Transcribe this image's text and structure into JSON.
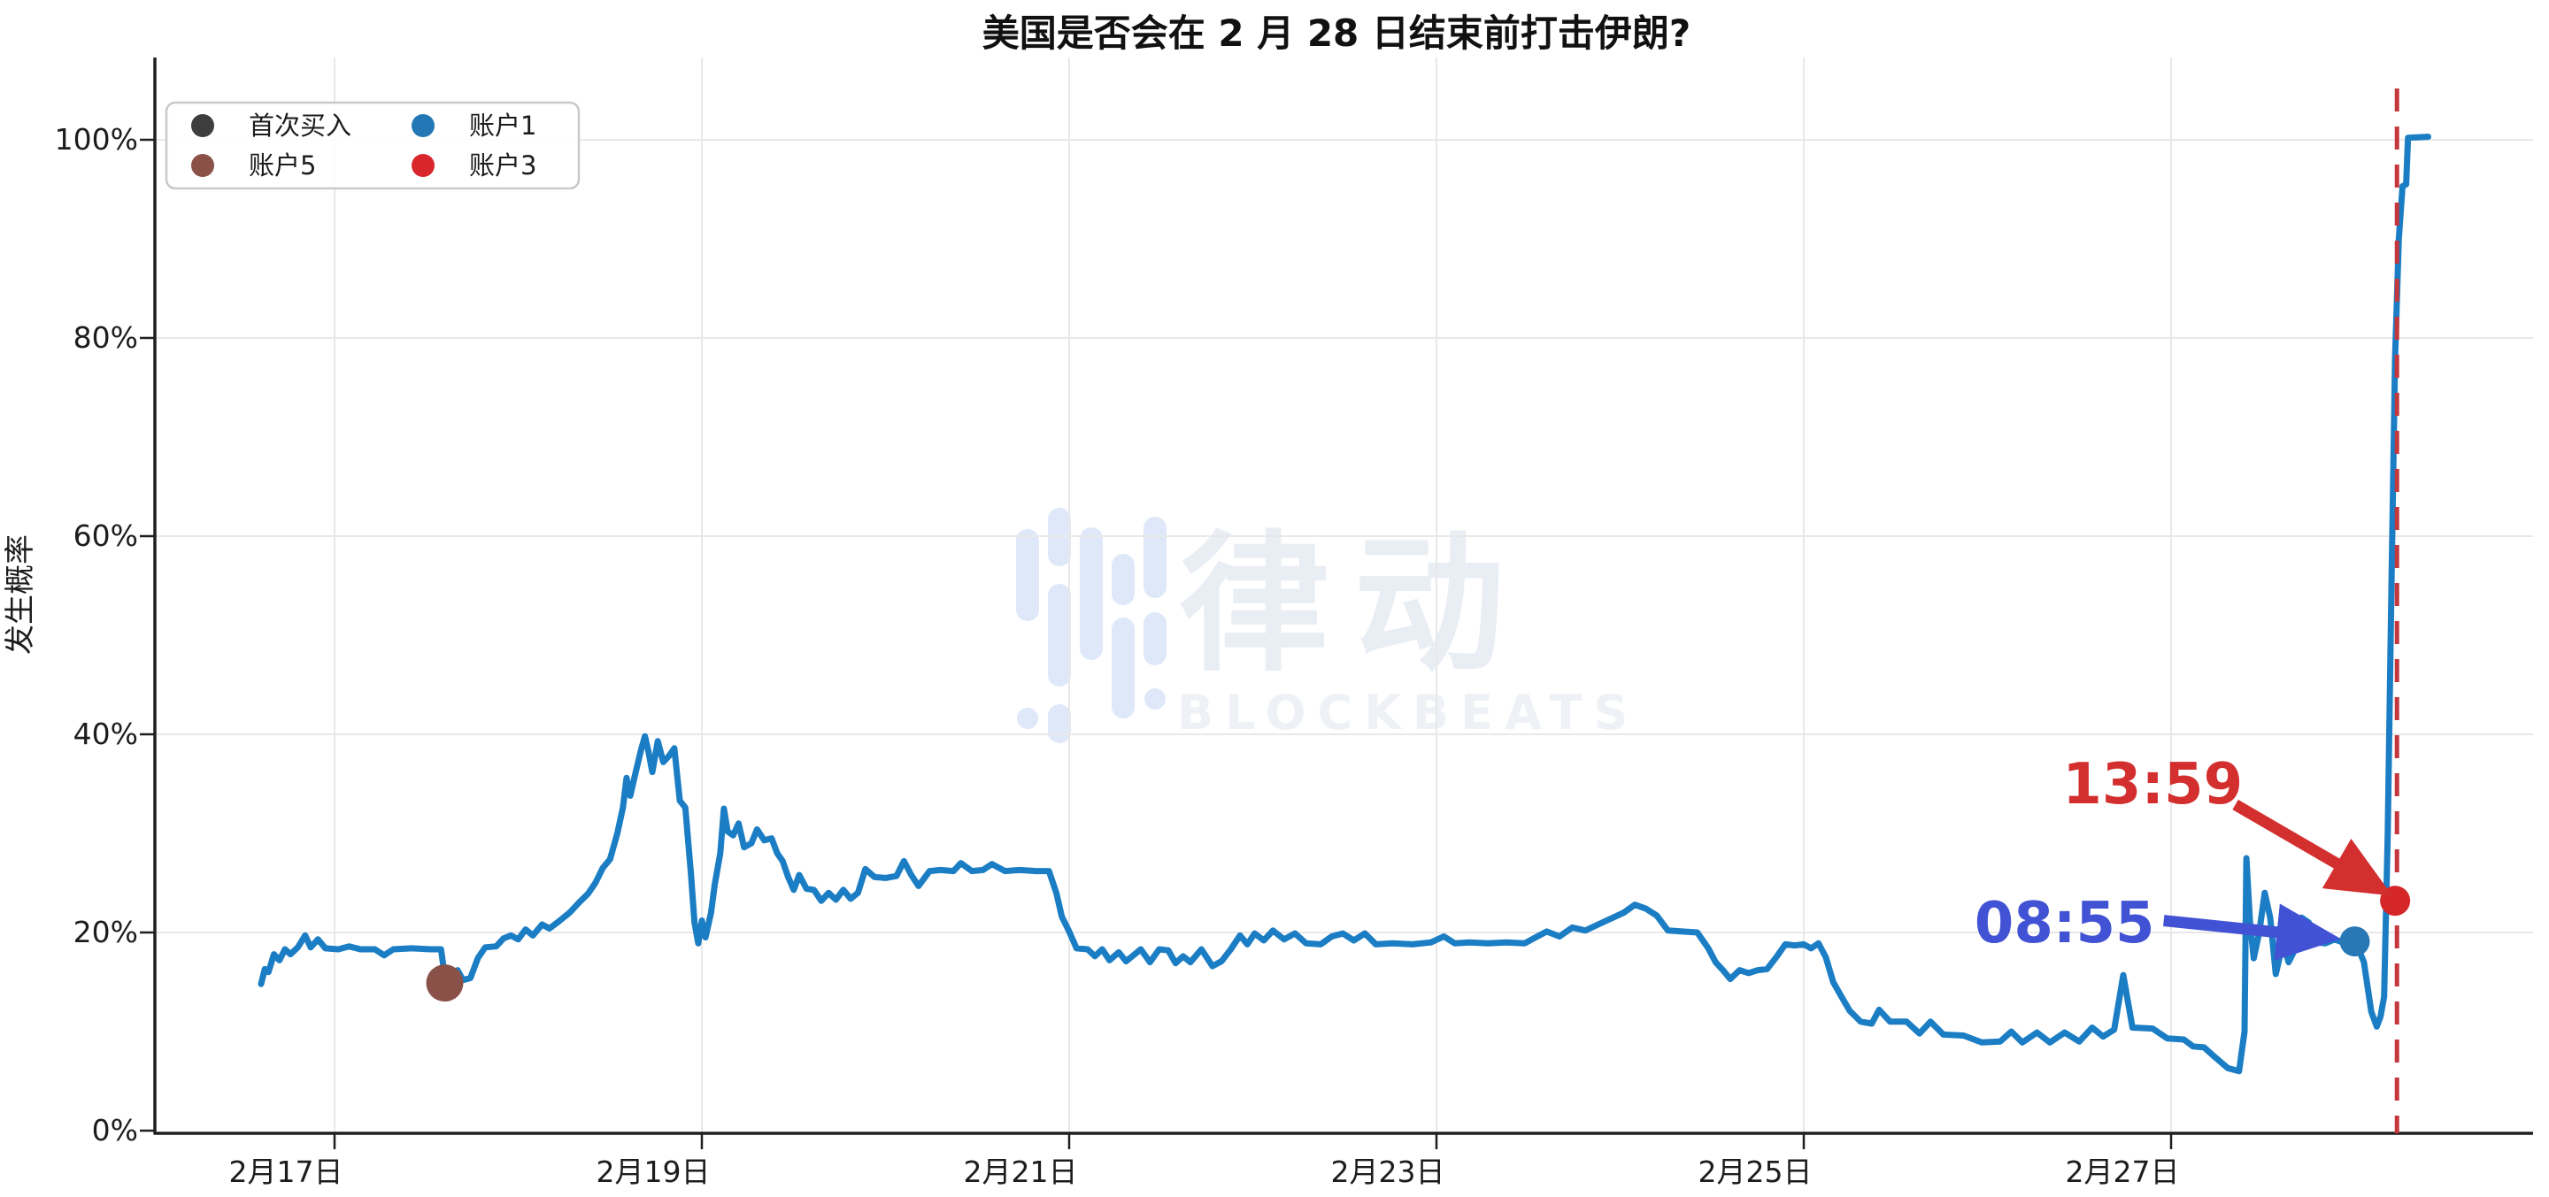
{
  "watermark": {
    "cn": "律动",
    "en": "BLOCKBEATS"
  },
  "chart_data": {
    "type": "line",
    "title": "美国是否会在 2 月 28 日结束前打击伊朗?",
    "ylabel": "发生概率",
    "xlabel": "",
    "grid": true,
    "line_color": "#1b7dc4",
    "x_unit": "february-date",
    "x_ticks": [
      {
        "day": 17,
        "label": "2月17日"
      },
      {
        "day": 19,
        "label": "2月19日"
      },
      {
        "day": 21,
        "label": "2月21日"
      },
      {
        "day": 23,
        "label": "2月23日"
      },
      {
        "day": 25,
        "label": "2月25日"
      },
      {
        "day": 27,
        "label": "2月27日"
      }
    ],
    "y_ticks": [
      {
        "pct": 0,
        "label": "0%"
      },
      {
        "pct": 20,
        "label": "20%"
      },
      {
        "pct": 40,
        "label": "40%"
      },
      {
        "pct": 60,
        "label": "60%"
      },
      {
        "pct": 80,
        "label": "80%"
      },
      {
        "pct": 100,
        "label": "100%"
      }
    ],
    "xlim_days": [
      16.0,
      29.0
    ],
    "ylim_pct": [
      -0.3,
      108.5
    ],
    "legend": {
      "position": "upper-left",
      "items": [
        {
          "label": "首次买入",
          "color": "#3e3e3e"
        },
        {
          "label": "账户5",
          "color": "#8a5148"
        },
        {
          "label": "账户1",
          "color": "#2277b4"
        },
        {
          "label": "账户3",
          "color": "#d8262c"
        }
      ]
    },
    "markers": [
      {
        "account": "账户5",
        "day": 17.6,
        "pct": 14.9,
        "color": "#8a5148",
        "radius": 21
      },
      {
        "account": "账户1",
        "day": 28.0,
        "pct": 19.1,
        "color": "#2878b5",
        "radius": 17
      },
      {
        "account": "账户3",
        "day": 28.22,
        "pct": 23.2,
        "color": "#d62728",
        "radius": 17
      }
    ],
    "event_line": {
      "day": 28.23,
      "color": "#c4373d",
      "style": "dashed"
    },
    "annotations": [
      {
        "text": "13:59",
        "color": "#d32f2f",
        "text_day": 26.9,
        "text_pct": 35.0,
        "arrow_from_day": 27.35,
        "arrow_from_pct": 32.9,
        "arrow_to_day": 28.14,
        "arrow_to_pct": 24.4
      },
      {
        "text": "08:55",
        "color": "#4152d4",
        "text_day": 26.42,
        "text_pct": 21.0,
        "arrow_from_day": 26.96,
        "arrow_from_pct": 21.2,
        "arrow_to_day": 27.85,
        "arrow_to_pct": 19.5
      }
    ],
    "series": [
      [
        16.6,
        14.8
      ],
      [
        16.62,
        16.3
      ],
      [
        16.64,
        16.0
      ],
      [
        16.67,
        17.8
      ],
      [
        16.7,
        17.2
      ],
      [
        16.73,
        18.3
      ],
      [
        16.76,
        17.8
      ],
      [
        16.8,
        18.5
      ],
      [
        16.84,
        19.7
      ],
      [
        16.87,
        18.5
      ],
      [
        16.91,
        19.3
      ],
      [
        16.95,
        18.4
      ],
      [
        17.02,
        18.3
      ],
      [
        17.08,
        18.6
      ],
      [
        17.14,
        18.3
      ],
      [
        17.22,
        18.3
      ],
      [
        17.27,
        17.7
      ],
      [
        17.32,
        18.3
      ],
      [
        17.42,
        18.4
      ],
      [
        17.52,
        18.3
      ],
      [
        17.58,
        18.3
      ],
      [
        17.6,
        15.6
      ],
      [
        17.64,
        15.2
      ],
      [
        17.67,
        16.2
      ],
      [
        17.7,
        15.2
      ],
      [
        17.74,
        15.4
      ],
      [
        17.78,
        17.4
      ],
      [
        17.82,
        18.5
      ],
      [
        17.88,
        18.6
      ],
      [
        17.92,
        19.4
      ],
      [
        17.96,
        19.7
      ],
      [
        18.0,
        19.3
      ],
      [
        18.04,
        20.3
      ],
      [
        18.08,
        19.7
      ],
      [
        18.13,
        20.8
      ],
      [
        18.17,
        20.4
      ],
      [
        18.22,
        21.1
      ],
      [
        18.28,
        22.0
      ],
      [
        18.33,
        23.0
      ],
      [
        18.38,
        23.9
      ],
      [
        18.42,
        25.0
      ],
      [
        18.46,
        26.5
      ],
      [
        18.5,
        27.4
      ],
      [
        18.54,
        30.0
      ],
      [
        18.57,
        32.6
      ],
      [
        18.59,
        35.6
      ],
      [
        18.61,
        33.8
      ],
      [
        18.64,
        36.2
      ],
      [
        18.67,
        38.5
      ],
      [
        18.69,
        39.8
      ],
      [
        18.71,
        38.2
      ],
      [
        18.73,
        36.2
      ],
      [
        18.76,
        39.3
      ],
      [
        18.79,
        37.2
      ],
      [
        18.82,
        37.8
      ],
      [
        18.85,
        38.6
      ],
      [
        18.88,
        33.3
      ],
      [
        18.91,
        32.6
      ],
      [
        18.94,
        26.0
      ],
      [
        18.96,
        21.0
      ],
      [
        18.98,
        18.9
      ],
      [
        19.0,
        21.2
      ],
      [
        19.02,
        19.5
      ],
      [
        19.05,
        22.0
      ],
      [
        19.07,
        24.8
      ],
      [
        19.1,
        28.0
      ],
      [
        19.12,
        32.5
      ],
      [
        19.14,
        30.2
      ],
      [
        19.17,
        29.8
      ],
      [
        19.2,
        31.0
      ],
      [
        19.23,
        28.6
      ],
      [
        19.27,
        29.0
      ],
      [
        19.3,
        30.4
      ],
      [
        19.34,
        29.3
      ],
      [
        19.38,
        29.5
      ],
      [
        19.41,
        28.0
      ],
      [
        19.44,
        27.2
      ],
      [
        19.47,
        25.6
      ],
      [
        19.5,
        24.3
      ],
      [
        19.53,
        25.8
      ],
      [
        19.57,
        24.4
      ],
      [
        19.61,
        24.3
      ],
      [
        19.65,
        23.2
      ],
      [
        19.69,
        24.0
      ],
      [
        19.73,
        23.3
      ],
      [
        19.77,
        24.3
      ],
      [
        19.81,
        23.4
      ],
      [
        19.85,
        24.0
      ],
      [
        19.89,
        26.4
      ],
      [
        19.94,
        25.6
      ],
      [
        20.0,
        25.5
      ],
      [
        20.06,
        25.7
      ],
      [
        20.1,
        27.2
      ],
      [
        20.14,
        25.8
      ],
      [
        20.18,
        24.7
      ],
      [
        20.24,
        26.2
      ],
      [
        20.3,
        26.3
      ],
      [
        20.37,
        26.2
      ],
      [
        20.41,
        27.0
      ],
      [
        20.47,
        26.2
      ],
      [
        20.53,
        26.3
      ],
      [
        20.58,
        26.9
      ],
      [
        20.65,
        26.2
      ],
      [
        20.73,
        26.3
      ],
      [
        20.82,
        26.2
      ],
      [
        20.89,
        26.2
      ],
      [
        20.93,
        24.0
      ],
      [
        20.96,
        21.6
      ],
      [
        21.0,
        20.1
      ],
      [
        21.04,
        18.4
      ],
      [
        21.1,
        18.3
      ],
      [
        21.14,
        17.6
      ],
      [
        21.18,
        18.3
      ],
      [
        21.22,
        17.2
      ],
      [
        21.27,
        18.0
      ],
      [
        21.31,
        17.1
      ],
      [
        21.35,
        17.7
      ],
      [
        21.39,
        18.3
      ],
      [
        21.44,
        17.0
      ],
      [
        21.49,
        18.3
      ],
      [
        21.54,
        18.2
      ],
      [
        21.58,
        16.9
      ],
      [
        21.62,
        17.6
      ],
      [
        21.66,
        17.0
      ],
      [
        21.72,
        18.3
      ],
      [
        21.78,
        16.6
      ],
      [
        21.83,
        17.1
      ],
      [
        21.88,
        18.3
      ],
      [
        21.93,
        19.7
      ],
      [
        21.97,
        18.8
      ],
      [
        22.01,
        19.9
      ],
      [
        22.06,
        19.2
      ],
      [
        22.11,
        20.2
      ],
      [
        22.17,
        19.3
      ],
      [
        22.23,
        19.9
      ],
      [
        22.29,
        18.9
      ],
      [
        22.37,
        18.8
      ],
      [
        22.43,
        19.6
      ],
      [
        22.49,
        19.9
      ],
      [
        22.55,
        19.2
      ],
      [
        22.61,
        19.9
      ],
      [
        22.67,
        18.8
      ],
      [
        22.76,
        18.9
      ],
      [
        22.87,
        18.8
      ],
      [
        22.97,
        19.0
      ],
      [
        23.04,
        19.6
      ],
      [
        23.1,
        18.9
      ],
      [
        23.18,
        19.0
      ],
      [
        23.28,
        18.9
      ],
      [
        23.38,
        19.0
      ],
      [
        23.48,
        18.9
      ],
      [
        23.54,
        19.5
      ],
      [
        23.6,
        20.1
      ],
      [
        23.67,
        19.6
      ],
      [
        23.74,
        20.5
      ],
      [
        23.81,
        20.2
      ],
      [
        23.88,
        20.8
      ],
      [
        23.95,
        21.4
      ],
      [
        24.02,
        22.0
      ],
      [
        24.08,
        22.8
      ],
      [
        24.14,
        22.4
      ],
      [
        24.2,
        21.7
      ],
      [
        24.26,
        20.2
      ],
      [
        24.34,
        20.1
      ],
      [
        24.42,
        20.0
      ],
      [
        24.48,
        18.4
      ],
      [
        24.52,
        17.0
      ],
      [
        24.56,
        16.2
      ],
      [
        24.6,
        15.3
      ],
      [
        24.65,
        16.2
      ],
      [
        24.7,
        15.9
      ],
      [
        24.75,
        16.2
      ],
      [
        24.8,
        16.3
      ],
      [
        24.85,
        17.5
      ],
      [
        24.9,
        18.8
      ],
      [
        24.95,
        18.7
      ],
      [
        25.0,
        18.8
      ],
      [
        25.04,
        18.4
      ],
      [
        25.08,
        18.9
      ],
      [
        25.12,
        17.5
      ],
      [
        25.16,
        15.0
      ],
      [
        25.2,
        13.7
      ],
      [
        25.25,
        12.1
      ],
      [
        25.31,
        11.0
      ],
      [
        25.37,
        10.8
      ],
      [
        25.41,
        12.2
      ],
      [
        25.47,
        11.0
      ],
      [
        25.56,
        11.0
      ],
      [
        25.63,
        9.8
      ],
      [
        25.69,
        11.0
      ],
      [
        25.76,
        9.7
      ],
      [
        25.87,
        9.6
      ],
      [
        25.97,
        8.9
      ],
      [
        26.07,
        9.0
      ],
      [
        26.13,
        10.0
      ],
      [
        26.19,
        8.9
      ],
      [
        26.27,
        9.9
      ],
      [
        26.34,
        8.9
      ],
      [
        26.42,
        9.9
      ],
      [
        26.5,
        9.0
      ],
      [
        26.57,
        10.4
      ],
      [
        26.63,
        9.5
      ],
      [
        26.69,
        10.2
      ],
      [
        26.74,
        15.7
      ],
      [
        26.79,
        10.4
      ],
      [
        26.9,
        10.3
      ],
      [
        26.98,
        9.3
      ],
      [
        27.07,
        9.2
      ],
      [
        27.12,
        8.5
      ],
      [
        27.18,
        8.4
      ],
      [
        27.24,
        7.4
      ],
      [
        27.31,
        6.3
      ],
      [
        27.37,
        6.0
      ],
      [
        27.4,
        10.0
      ],
      [
        27.41,
        27.5
      ],
      [
        27.43,
        21.0
      ],
      [
        27.45,
        17.4
      ],
      [
        27.48,
        20.0
      ],
      [
        27.51,
        24.0
      ],
      [
        27.54,
        21.5
      ],
      [
        27.57,
        15.8
      ],
      [
        27.61,
        19.0
      ],
      [
        27.64,
        17.0
      ],
      [
        27.67,
        18.1
      ],
      [
        27.71,
        21.5
      ],
      [
        27.75,
        21.0
      ],
      [
        27.79,
        19.0
      ],
      [
        27.84,
        18.9
      ],
      [
        27.89,
        19.3
      ],
      [
        27.95,
        18.9
      ],
      [
        28.01,
        18.8
      ],
      [
        28.05,
        17.0
      ],
      [
        28.09,
        12.0
      ],
      [
        28.12,
        10.5
      ],
      [
        28.14,
        11.5
      ],
      [
        28.16,
        13.5
      ],
      [
        28.18,
        30.0
      ],
      [
        28.2,
        55.0
      ],
      [
        28.22,
        78.0
      ],
      [
        28.24,
        90.0
      ],
      [
        28.26,
        95.3
      ],
      [
        28.28,
        95.5
      ],
      [
        28.29,
        100.2
      ],
      [
        28.4,
        100.3
      ]
    ]
  }
}
